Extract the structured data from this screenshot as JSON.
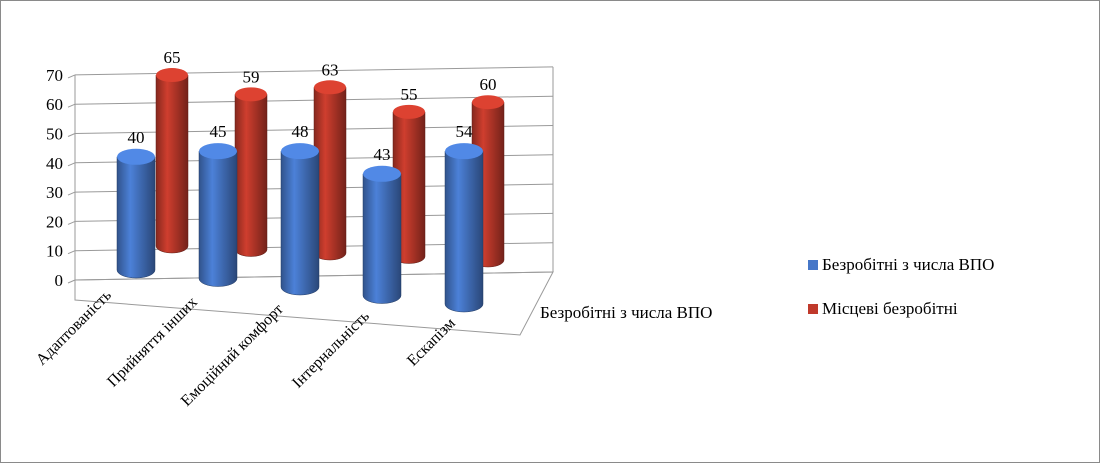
{
  "chart_data": {
    "type": "bar",
    "style": "3d-cylinder",
    "categories": [
      "Адаптованість",
      "Прийняття інших",
      "Емоційний комфорт",
      "Інтернальність",
      "Ескапізм"
    ],
    "series": [
      {
        "name": "Безробітні з числа ВПО",
        "values": [
          40,
          45,
          48,
          43,
          54
        ],
        "color": "#4677c8"
      },
      {
        "name": "Місцеві безробітні",
        "values": [
          65,
          59,
          63,
          55,
          60
        ],
        "color": "#c0392b"
      }
    ],
    "series_axis_label": "Безробітні з числа ВПО",
    "yticks": [
      0,
      10,
      20,
      30,
      40,
      50,
      60,
      70
    ],
    "ylim": [
      0,
      70
    ],
    "grid": true,
    "legend_position": "right"
  }
}
